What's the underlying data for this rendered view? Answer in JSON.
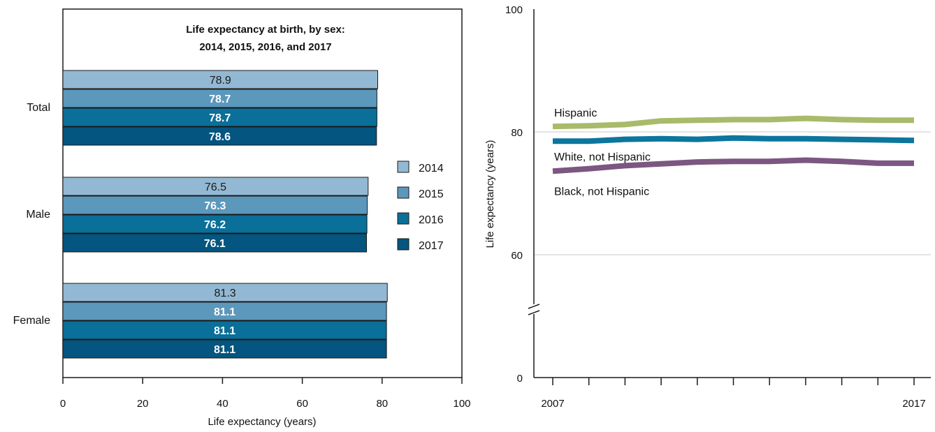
{
  "chart_data": [
    {
      "type": "bar",
      "orientation": "horizontal",
      "title": "Life expectancy at birth, by sex:",
      "subtitle": "2014, 2015, 2016, and 2017",
      "xlabel": "Life expectancy (years)",
      "ylabel": "",
      "xlim": [
        0,
        100
      ],
      "xticks": [
        "0",
        "20",
        "40",
        "60",
        "80",
        "100"
      ],
      "grid": false,
      "legend_position": "right",
      "categories": [
        "Total",
        "Male",
        "Female"
      ],
      "series": [
        {
          "name": "2014",
          "color": "#93b8d3",
          "label_color": "#1a1a1a",
          "values": [
            78.9,
            76.5,
            81.3
          ]
        },
        {
          "name": "2015",
          "color": "#5c97bc",
          "label_color": "#ffffff",
          "values": [
            78.7,
            76.3,
            81.1
          ]
        },
        {
          "name": "2016",
          "color": "#0a6f99",
          "label_color": "#ffffff",
          "values": [
            78.7,
            76.2,
            81.1
          ]
        },
        {
          "name": "2017",
          "color": "#04557f",
          "label_color": "#ffffff",
          "values": [
            78.6,
            76.1,
            81.1
          ]
        }
      ],
      "data_labels": [
        [
          "78.9",
          "78.7",
          "78.7",
          "78.6"
        ],
        [
          "76.5",
          "76.3",
          "76.2",
          "76.1"
        ],
        [
          "81.3",
          "81.1",
          "81.1",
          "81.1"
        ]
      ]
    },
    {
      "type": "line",
      "ylabel": "Life expectancy (years)",
      "xlabel": "",
      "xlim": [
        2007,
        2017
      ],
      "ylim": [
        0,
        100
      ],
      "axis_break": true,
      "yticks": [
        "0",
        "60",
        "80",
        "100"
      ],
      "xtick_labels": [
        "2007",
        "2017"
      ],
      "grid": "horizontal at 60 and 80",
      "x": [
        2007,
        2008,
        2009,
        2010,
        2011,
        2012,
        2013,
        2014,
        2015,
        2016,
        2017
      ],
      "series": [
        {
          "name": "Hispanic",
          "color": "#a9ba6a",
          "values": [
            80.9,
            81.0,
            81.2,
            81.8,
            81.9,
            82.0,
            82.0,
            82.2,
            82.0,
            81.9,
            81.9
          ]
        },
        {
          "name": "White, not Hispanic",
          "color": "#0c769d",
          "values": [
            78.5,
            78.5,
            78.8,
            78.9,
            78.8,
            79.0,
            78.9,
            78.9,
            78.8,
            78.7,
            78.6
          ]
        },
        {
          "name": "Black, not Hispanic",
          "color": "#7c5781",
          "values": [
            73.6,
            74.0,
            74.5,
            74.8,
            75.1,
            75.2,
            75.2,
            75.4,
            75.2,
            74.9,
            74.9
          ]
        }
      ]
    }
  ]
}
